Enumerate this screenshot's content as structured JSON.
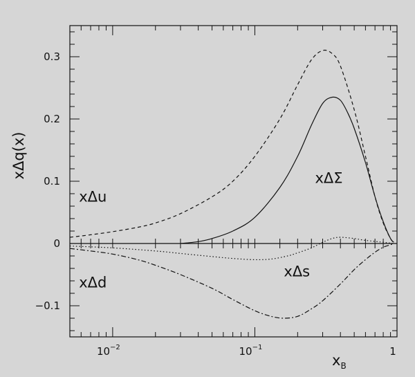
{
  "chart_data": {
    "type": "line",
    "title": "",
    "xlabel": "x",
    "xlabel_subscript": "B",
    "ylabel": "xΔq(x)",
    "xscale": "log",
    "xlim": [
      0.005,
      1
    ],
    "ylim": [
      -0.15,
      0.35
    ],
    "grid": false,
    "zero_line": true,
    "legend": "inline labels",
    "x_ticks": [
      {
        "value": 0.01,
        "base": "10",
        "exp": "−2"
      },
      {
        "value": 0.1,
        "base": "10",
        "exp": "−1"
      },
      {
        "value": 1,
        "base": "1",
        "exp": ""
      }
    ],
    "y_ticks": [
      {
        "value": 0.3,
        "label": "0.3"
      },
      {
        "value": 0.2,
        "label": "0.2"
      },
      {
        "value": 0.1,
        "label": "0.1"
      },
      {
        "value": 0,
        "label": "0"
      },
      {
        "value": -0.1,
        "label": "−0.1"
      }
    ],
    "bin_edges": [
      0.006,
      0.007,
      0.008,
      0.01,
      0.02,
      0.03,
      0.04,
      0.05,
      0.06,
      0.07,
      0.08,
      0.09,
      0.1,
      0.15,
      0.2,
      0.25,
      0.3,
      0.4,
      0.5,
      0.6,
      0.7,
      0.8
    ],
    "series": [
      {
        "name": "xΔu",
        "style": "dashed",
        "label_at": [
          0.0058,
          0.075
        ],
        "x": [
          0.005,
          0.007,
          0.01,
          0.015,
          0.02,
          0.03,
          0.05,
          0.07,
          0.1,
          0.15,
          0.2,
          0.25,
          0.3,
          0.35,
          0.4,
          0.5,
          0.6,
          0.7,
          0.8,
          0.9,
          0.95
        ],
        "y": [
          0.01,
          0.014,
          0.019,
          0.026,
          0.033,
          0.048,
          0.075,
          0.1,
          0.14,
          0.2,
          0.255,
          0.295,
          0.31,
          0.305,
          0.285,
          0.215,
          0.14,
          0.075,
          0.033,
          0.008,
          0.002
        ]
      },
      {
        "name": "xΔΣ",
        "style": "solid",
        "label_at": [
          0.265,
          0.105
        ],
        "x": [
          0.03,
          0.04,
          0.05,
          0.07,
          0.1,
          0.15,
          0.2,
          0.25,
          0.3,
          0.35,
          0.4,
          0.45,
          0.5,
          0.6,
          0.7,
          0.8,
          0.9,
          0.95
        ],
        "y": [
          0.0,
          0.003,
          0.008,
          0.02,
          0.042,
          0.09,
          0.14,
          0.19,
          0.225,
          0.235,
          0.23,
          0.21,
          0.185,
          0.13,
          0.075,
          0.035,
          0.008,
          0.002
        ]
      },
      {
        "name": "xΔs",
        "style": "dotted",
        "label_at": [
          0.16,
          -0.045
        ],
        "x": [
          0.005,
          0.01,
          0.02,
          0.03,
          0.05,
          0.07,
          0.1,
          0.13,
          0.17,
          0.2,
          0.25,
          0.3,
          0.35,
          0.4,
          0.5,
          0.6,
          0.8,
          0.95
        ],
        "y": [
          -0.004,
          -0.007,
          -0.012,
          -0.016,
          -0.021,
          -0.024,
          -0.026,
          -0.025,
          -0.02,
          -0.015,
          -0.007,
          0.002,
          0.008,
          0.01,
          0.008,
          0.005,
          0.002,
          0.0
        ]
      },
      {
        "name": "xΔd",
        "style": "dashdot",
        "label_at": [
          0.0058,
          -0.063
        ],
        "x": [
          0.005,
          0.007,
          0.01,
          0.015,
          0.02,
          0.03,
          0.05,
          0.07,
          0.1,
          0.13,
          0.16,
          0.2,
          0.25,
          0.3,
          0.4,
          0.5,
          0.6,
          0.7,
          0.8,
          0.9,
          0.95
        ],
        "y": [
          -0.008,
          -0.012,
          -0.017,
          -0.026,
          -0.035,
          -0.05,
          -0.072,
          -0.09,
          -0.108,
          -0.117,
          -0.12,
          -0.117,
          -0.105,
          -0.092,
          -0.065,
          -0.042,
          -0.026,
          -0.014,
          -0.006,
          -0.002,
          0.0
        ]
      }
    ]
  }
}
